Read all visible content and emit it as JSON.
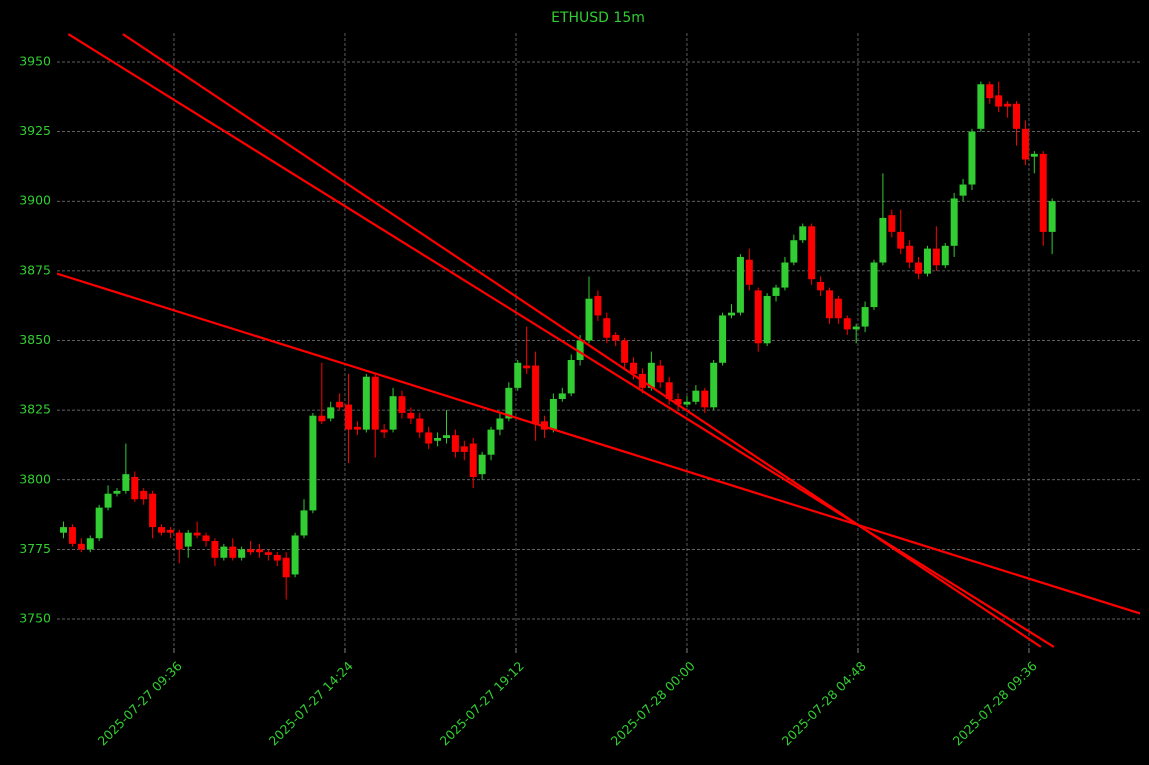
{
  "chart_data": {
    "type": "candlestick",
    "title": "ETHUSD 15m",
    "x": [
      "2025-07-27 06:30",
      "2025-07-27 06:45",
      "2025-07-27 07:00",
      "2025-07-27 07:15",
      "2025-07-27 07:30",
      "2025-07-27 07:45",
      "2025-07-27 08:00",
      "2025-07-27 08:15",
      "2025-07-27 08:30",
      "2025-07-27 08:45",
      "2025-07-27 09:00",
      "2025-07-27 09:15",
      "2025-07-27 09:30",
      "2025-07-27 09:45",
      "2025-07-27 10:00",
      "2025-07-27 10:15",
      "2025-07-27 10:30",
      "2025-07-27 10:45",
      "2025-07-27 11:00",
      "2025-07-27 11:15",
      "2025-07-27 11:30",
      "2025-07-27 11:45",
      "2025-07-27 12:00",
      "2025-07-27 12:15",
      "2025-07-27 12:30",
      "2025-07-27 12:45",
      "2025-07-27 13:00",
      "2025-07-27 13:15",
      "2025-07-27 13:30",
      "2025-07-27 13:45",
      "2025-07-27 14:00",
      "2025-07-27 14:15",
      "2025-07-27 14:30",
      "2025-07-27 14:45",
      "2025-07-27 15:00",
      "2025-07-27 15:15",
      "2025-07-27 15:30",
      "2025-07-27 15:45",
      "2025-07-27 16:00",
      "2025-07-27 16:15",
      "2025-07-27 16:30",
      "2025-07-27 16:45",
      "2025-07-27 17:00",
      "2025-07-27 17:15",
      "2025-07-27 17:30",
      "2025-07-27 17:45",
      "2025-07-27 18:00",
      "2025-07-27 18:15",
      "2025-07-27 18:30",
      "2025-07-27 18:45",
      "2025-07-27 19:00",
      "2025-07-27 19:15",
      "2025-07-27 19:30",
      "2025-07-27 19:45",
      "2025-07-27 20:00",
      "2025-07-27 20:15",
      "2025-07-27 20:30",
      "2025-07-27 20:45",
      "2025-07-27 21:00",
      "2025-07-27 21:15",
      "2025-07-27 21:30",
      "2025-07-27 21:45",
      "2025-07-27 22:00",
      "2025-07-27 22:15",
      "2025-07-27 22:30",
      "2025-07-27 22:45",
      "2025-07-27 23:00",
      "2025-07-27 23:15",
      "2025-07-27 23:30",
      "2025-07-27 23:45",
      "2025-07-28 00:00",
      "2025-07-28 00:15",
      "2025-07-28 00:30",
      "2025-07-28 00:45",
      "2025-07-28 01:00",
      "2025-07-28 01:15",
      "2025-07-28 01:30",
      "2025-07-28 01:45",
      "2025-07-28 02:00",
      "2025-07-28 02:15",
      "2025-07-28 02:30",
      "2025-07-28 02:45",
      "2025-07-28 03:00",
      "2025-07-28 03:15",
      "2025-07-28 03:30",
      "2025-07-28 03:45",
      "2025-07-28 04:00",
      "2025-07-28 04:15",
      "2025-07-28 04:30",
      "2025-07-28 04:45",
      "2025-07-28 05:00",
      "2025-07-28 05:15",
      "2025-07-28 05:30",
      "2025-07-28 05:45",
      "2025-07-28 06:00",
      "2025-07-28 06:15",
      "2025-07-28 06:30",
      "2025-07-28 06:45",
      "2025-07-28 07:00",
      "2025-07-28 07:15",
      "2025-07-28 07:30",
      "2025-07-28 07:45",
      "2025-07-28 08:00",
      "2025-07-28 08:15",
      "2025-07-28 08:30",
      "2025-07-28 08:45",
      "2025-07-28 09:00",
      "2025-07-28 09:15",
      "2025-07-28 09:30",
      "2025-07-28 09:45",
      "2025-07-28 10:00",
      "2025-07-28 10:15"
    ],
    "open": [
      3781,
      3783,
      3777,
      3775,
      3779,
      3790,
      3795,
      3796,
      3801,
      3796,
      3795,
      3783,
      3782,
      3781,
      3776,
      3781,
      3780,
      3778,
      3772,
      3776,
      3772,
      3775,
      3775,
      3774,
      3773,
      3772,
      3766,
      3780,
      3789,
      3823,
      3822,
      3828,
      3827,
      3819,
      3818,
      3837,
      3818,
      3818,
      3830,
      3824,
      3822,
      3817,
      3814,
      3815,
      3816,
      3812,
      3813,
      3802,
      3809,
      3818,
      3822,
      3833,
      3841,
      3841,
      3821,
      3818,
      3829,
      3831,
      3843,
      3850,
      3866,
      3858,
      3852,
      3850,
      3842,
      3838,
      3833,
      3841,
      3835,
      3829,
      3827,
      3828,
      3832,
      3826,
      3842,
      3859,
      3860,
      3879,
      3868,
      3849,
      3866,
      3869,
      3878,
      3886,
      3891,
      3871,
      3868,
      3865,
      3858,
      3854,
      3855,
      3862,
      3878,
      3895,
      3889,
      3884,
      3878,
      3874,
      3883,
      3877,
      3884,
      3902,
      3906,
      3926,
      3942,
      3938,
      3935,
      3935,
      3926,
      3916,
      3917,
      3889
    ],
    "high": [
      3785,
      3784,
      3779,
      3780,
      3791,
      3798,
      3797,
      3813,
      3803,
      3797,
      3796,
      3784,
      3783,
      3782,
      3782,
      3785,
      3781,
      3779,
      3777,
      3779,
      3776,
      3778,
      3777,
      3775,
      3774,
      3774,
      3781,
      3793,
      3824,
      3842,
      3828,
      3831,
      3838,
      3821,
      3838,
      3838,
      3820,
      3833,
      3832,
      3826,
      3824,
      3819,
      3817,
      3825,
      3818,
      3814,
      3815,
      3810,
      3819,
      3824,
      3835,
      3843,
      3855,
      3846,
      3823,
      3831,
      3833,
      3845,
      3852,
      3873,
      3868,
      3860,
      3853,
      3851,
      3844,
      3840,
      3846,
      3843,
      3837,
      3831,
      3830,
      3834,
      3833,
      3843,
      3860,
      3863,
      3881,
      3883,
      3869,
      3867,
      3870,
      3880,
      3888,
      3892,
      3892,
      3873,
      3869,
      3866,
      3859,
      3856,
      3864,
      3879,
      3910,
      3897,
      3897,
      3886,
      3880,
      3884,
      3891,
      3885,
      3903,
      3908,
      3926,
      3943,
      3943,
      3943,
      3936,
      3936,
      3929,
      3918,
      3918,
      3901
    ],
    "low": [
      3779,
      3776,
      3774,
      3774,
      3778,
      3789,
      3794,
      3795,
      3792,
      3791,
      3779,
      3780,
      3779,
      3770,
      3772,
      3779,
      3776,
      3769,
      3771,
      3771,
      3771,
      3773,
      3772,
      3771,
      3769,
      3757,
      3765,
      3779,
      3788,
      3820,
      3821,
      3825,
      3806,
      3816,
      3817,
      3808,
      3815,
      3817,
      3822,
      3820,
      3815,
      3811,
      3812,
      3813,
      3808,
      3807,
      3797,
      3800,
      3807,
      3816,
      3821,
      3832,
      3838,
      3814,
      3815,
      3817,
      3828,
      3830,
      3841,
      3849,
      3857,
      3849,
      3848,
      3840,
      3836,
      3831,
      3832,
      3833,
      3827,
      3825,
      3826,
      3827,
      3824,
      3825,
      3841,
      3858,
      3859,
      3868,
      3846,
      3848,
      3864,
      3868,
      3877,
      3885,
      3870,
      3866,
      3856,
      3856,
      3852,
      3849,
      3853,
      3861,
      3877,
      3887,
      3881,
      3876,
      3872,
      3873,
      3875,
      3876,
      3880,
      3900,
      3904,
      3925,
      3935,
      3932,
      3930,
      3920,
      3913,
      3910,
      3884,
      3881
    ],
    "close": [
      3783,
      3777,
      3775,
      3779,
      3790,
      3795,
      3796,
      3802,
      3793,
      3793,
      3783,
      3781,
      3781,
      3775,
      3781,
      3780,
      3778,
      3772,
      3776,
      3772,
      3775,
      3774,
      3774,
      3773,
      3771,
      3765,
      3780,
      3789,
      3823,
      3821,
      3826,
      3826,
      3818,
      3818,
      3837,
      3818,
      3817,
      3830,
      3824,
      3822,
      3817,
      3813,
      3815,
      3816,
      3810,
      3810,
      3801,
      3809,
      3818,
      3822,
      3833,
      3842,
      3840,
      3820,
      3818,
      3829,
      3831,
      3843,
      3850,
      3865,
      3859,
      3851,
      3850,
      3842,
      3838,
      3833,
      3842,
      3835,
      3829,
      3827,
      3828,
      3832,
      3826,
      3842,
      3859,
      3860,
      3880,
      3870,
      3849,
      3866,
      3869,
      3878,
      3886,
      3891,
      3872,
      3868,
      3858,
      3858,
      3854,
      3855,
      3862,
      3878,
      3894,
      3889,
      3883,
      3878,
      3874,
      3883,
      3877,
      3884,
      3901,
      3906,
      3925,
      3942,
      3937,
      3934,
      3934,
      3926,
      3915,
      3917,
      3889,
      3900
    ],
    "up_color": "#32cd32",
    "down_color": "#ff0000",
    "trendlines": [
      {
        "color": "#ff0000",
        "x": [
          "2025-07-27 06:19",
          "2025-07-28 12:43"
        ],
        "y": [
          3874,
          3752
        ]
      },
      {
        "color": "#ff0000",
        "x": [
          "2025-07-27 06:38",
          "2025-07-28 10:18"
        ],
        "y": [
          3960,
          3740
        ]
      },
      {
        "color": "#ff0000",
        "x": [
          "2025-07-27 08:10",
          "2025-07-28 09:56"
        ],
        "y": [
          3960,
          3740
        ]
      }
    ],
    "xlim": [
      "2025-07-27 06:19",
      "2025-07-28 12:43"
    ],
    "xticks": [
      "2025-07-27 09:36",
      "2025-07-27 14:24",
      "2025-07-27 19:12",
      "2025-07-28 00:00",
      "2025-07-28 04:48",
      "2025-07-28 09:36"
    ],
    "ylim": [
      3739.6,
      3960.4
    ],
    "yticks": [
      3750,
      3775,
      3800,
      3825,
      3850,
      3875,
      3900,
      3925,
      3950
    ],
    "grid": true
  }
}
